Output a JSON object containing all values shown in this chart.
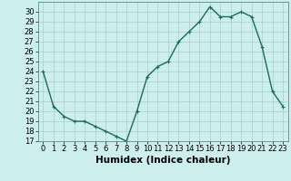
{
  "x": [
    0,
    1,
    2,
    3,
    4,
    5,
    6,
    7,
    8,
    9,
    10,
    11,
    12,
    13,
    14,
    15,
    16,
    17,
    18,
    19,
    20,
    21,
    22,
    23
  ],
  "y": [
    24,
    20.5,
    19.5,
    19,
    19,
    18.5,
    18,
    17.5,
    17,
    20,
    23.5,
    24.5,
    25,
    27,
    28,
    29,
    30.5,
    29.5,
    29.5,
    30,
    29.5,
    26.5,
    22,
    20.5
  ],
  "line_color": "#1a6b5a",
  "marker": "+",
  "marker_size": 3,
  "bg_color": "#cceeed",
  "grid_color": "#aacccc",
  "xlabel": "Humidex (Indice chaleur)",
  "xlim": [
    -0.5,
    23.5
  ],
  "ylim": [
    17,
    31
  ],
  "yticks": [
    17,
    18,
    19,
    20,
    21,
    22,
    23,
    24,
    25,
    26,
    27,
    28,
    29,
    30
  ],
  "xticks": [
    0,
    1,
    2,
    3,
    4,
    5,
    6,
    7,
    8,
    9,
    10,
    11,
    12,
    13,
    14,
    15,
    16,
    17,
    18,
    19,
    20,
    21,
    22,
    23
  ],
  "xlabel_fontsize": 7.5,
  "tick_fontsize": 6,
  "line_width": 1.0,
  "marker_edge_width": 0.8
}
